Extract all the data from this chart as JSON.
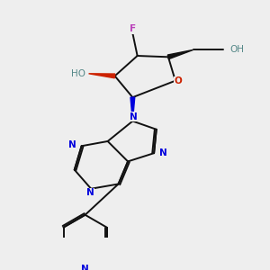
{
  "bg_color": "#eeeeee",
  "bond_color": "#111111",
  "N_color": "#0000dd",
  "O_color": "#cc2200",
  "F_color": "#bb44bb",
  "H_color": "#558888",
  "lw": 1.4,
  "fs": 7.5,
  "figsize": [
    3.0,
    3.0
  ],
  "dpi": 100,
  "xlim": [
    0,
    10
  ],
  "ylim": [
    0,
    10
  ]
}
